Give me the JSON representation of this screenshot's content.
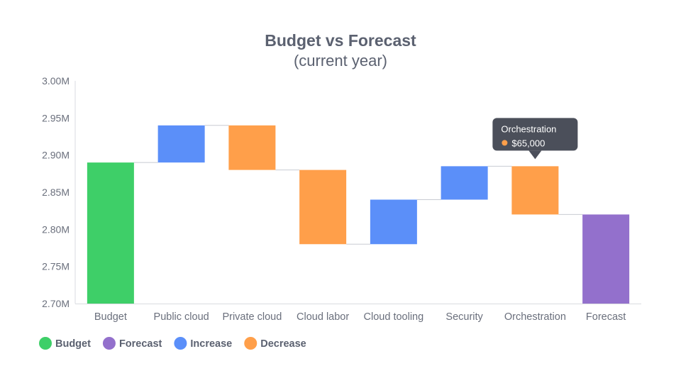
{
  "chart_data": {
    "type": "bar",
    "subtype": "waterfall",
    "title": "Budget vs Forecast",
    "subtitle": "(current year)",
    "xlabel": "",
    "ylabel": "",
    "ylim": [
      2.7,
      3.0
    ],
    "y_unit": "M",
    "y_ticks": [
      "2.70M",
      "2.75M",
      "2.80M",
      "2.85M",
      "2.90M",
      "2.95M",
      "3.00M"
    ],
    "y_tick_values": [
      2.7,
      2.75,
      2.8,
      2.85,
      2.9,
      2.95,
      3.0
    ],
    "categories": [
      "Budget",
      "Public cloud",
      "Private cloud",
      "Cloud labor",
      "Cloud tooling",
      "Security",
      "Orchestration",
      "Forecast"
    ],
    "bars": [
      {
        "category": "Budget",
        "kind": "Budget",
        "start": 2.7,
        "end": 2.89
      },
      {
        "category": "Public cloud",
        "kind": "Increase",
        "start": 2.89,
        "end": 2.94
      },
      {
        "category": "Private cloud",
        "kind": "Decrease",
        "start": 2.94,
        "end": 2.88
      },
      {
        "category": "Cloud labor",
        "kind": "Decrease",
        "start": 2.88,
        "end": 2.78
      },
      {
        "category": "Cloud tooling",
        "kind": "Increase",
        "start": 2.78,
        "end": 2.84
      },
      {
        "category": "Security",
        "kind": "Increase",
        "start": 2.84,
        "end": 2.885
      },
      {
        "category": "Orchestration",
        "kind": "Decrease",
        "start": 2.885,
        "end": 2.82
      },
      {
        "category": "Forecast",
        "kind": "Forecast",
        "start": 2.7,
        "end": 2.82
      }
    ],
    "legend": [
      {
        "name": "Budget",
        "color": "#3ecf68"
      },
      {
        "name": "Forecast",
        "color": "#9370cc"
      },
      {
        "name": "Increase",
        "color": "#5b8ff9"
      },
      {
        "name": "Decrease",
        "color": "#ff9f4a"
      }
    ],
    "legend_position": "bottom-left",
    "grid": false,
    "connectors": true,
    "tooltip": {
      "category": "Orchestration",
      "title": "Orchestration",
      "value": "$65,000",
      "marker_color": "#ff9f4a"
    }
  },
  "colors": {
    "Budget": "#3ecf68",
    "Forecast": "#9370cc",
    "Increase": "#5b8ff9",
    "Decrease": "#ff9f4a",
    "axis": "#d9dbe0",
    "connector": "#c8cbd2",
    "tooltip_bg": "#4b4f5a"
  }
}
